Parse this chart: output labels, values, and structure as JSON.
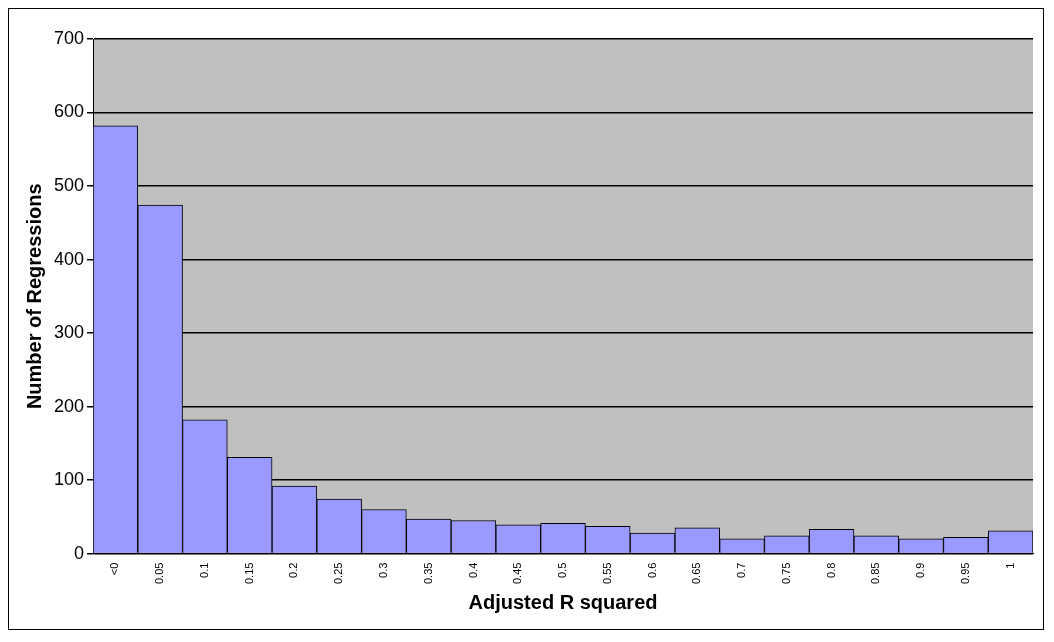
{
  "chart_data": {
    "type": "bar",
    "xlabel": "Adjusted R squared",
    "ylabel": "Number of Regressions",
    "categories": [
      "<0",
      "0.05",
      "0.1",
      "0.15",
      "0.2",
      "0.25",
      "0.3",
      "0.35",
      "0.4",
      "0.45",
      "0.5",
      "0.55",
      "0.6",
      "0.65",
      "0.7",
      "0.75",
      "0.8",
      "0.85",
      "0.9",
      "0.95",
      "1"
    ],
    "values": [
      582,
      474,
      182,
      131,
      92,
      74,
      60,
      47,
      45,
      39,
      41,
      37,
      28,
      35,
      20,
      24,
      33,
      24,
      20,
      22,
      31
    ],
    "color": "#9999ff",
    "ylim": [
      0,
      700
    ],
    "yticks": [
      0,
      100,
      200,
      300,
      400,
      500,
      600,
      700
    ],
    "grid": "y",
    "legend": false
  }
}
